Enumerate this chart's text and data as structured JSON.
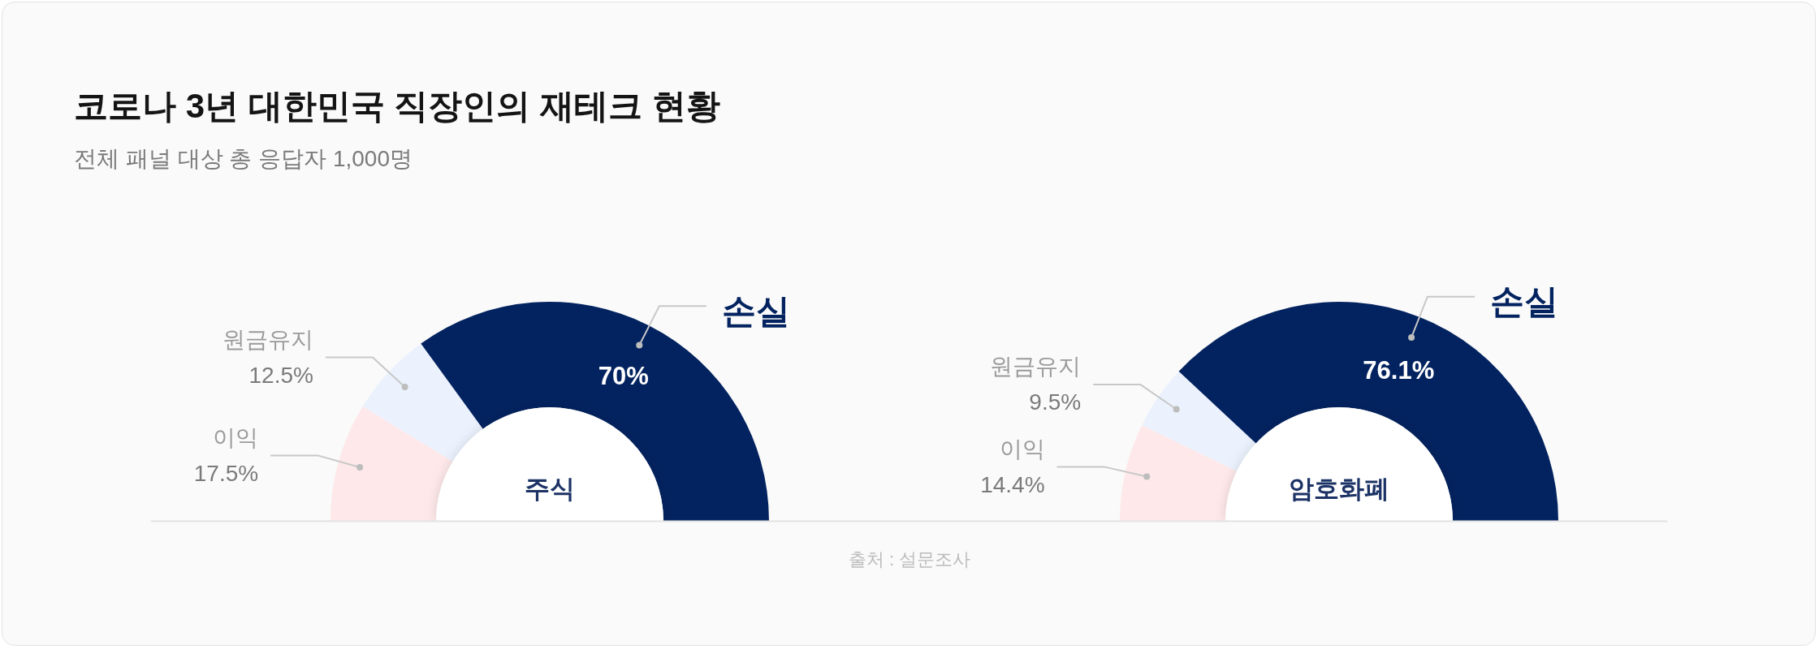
{
  "chart_data": [
    {
      "type": "donut",
      "title": "코로나 3년 대한민국 직장인의 재테크 현황",
      "subtitle": "전체 패널 대상 총 응답자 1,000명",
      "categories": [
        "이익",
        "원금유지",
        "손실"
      ],
      "values": [
        17.5,
        12.5,
        70
      ],
      "colors": [
        "#fee8e9",
        "#ebf2fd",
        "#032360"
      ],
      "value_labels": [
        "17.5%",
        "12.5%",
        "70%"
      ],
      "annotations": [
        "주식",
        "출처 : 설문조사"
      ]
    },
    {
      "type": "donut",
      "categories": [
        "이익",
        "원금유지",
        "손실"
      ],
      "values": [
        14.4,
        9.5,
        76.1
      ],
      "colors": [
        "#fee8e9",
        "#ebf2fd",
        "#032360"
      ],
      "value_labels": [
        "14.4%",
        "9.5%",
        "76.1%"
      ],
      "annotations": [
        "암호화폐"
      ]
    }
  ]
}
